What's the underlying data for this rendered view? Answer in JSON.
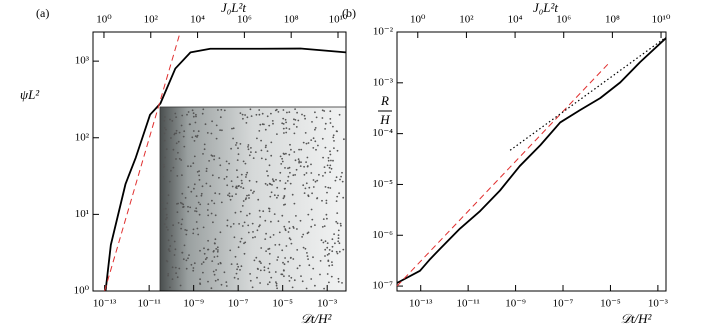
{
  "chart_data": [
    {
      "type": "line",
      "label": "(a)",
      "xscale": "log",
      "yscale": "log",
      "xlabel": "𝒟t/H²",
      "x2label": "J₀L²t",
      "ylabel": "ψL²",
      "xlim": [
        3e-14,
        0.007
      ],
      "xticks": [
        {
          "value": 1e-13,
          "label": "10⁻¹³"
        },
        {
          "value": 1e-11,
          "label": "10⁻¹¹"
        },
        {
          "value": 1e-09,
          "label": "10⁻⁹"
        },
        {
          "value": 1e-07,
          "label": "10⁻⁷"
        },
        {
          "value": 1e-05,
          "label": "10⁻⁵"
        },
        {
          "value": 0.001,
          "label": "10⁻³"
        }
      ],
      "x2lim": [
        0.34,
        22000000000.0
      ],
      "x2ticks": [
        {
          "value": 1,
          "label": "10⁰"
        },
        {
          "value": 100,
          "label": "10²"
        },
        {
          "value": 10000,
          "label": "10⁴"
        },
        {
          "value": 1000000,
          "label": "10⁶"
        },
        {
          "value": 100000000,
          "label": "10⁸"
        },
        {
          "value": 10000000000,
          "label": "10¹⁰"
        }
      ],
      "ylim": [
        1,
        2400
      ],
      "yticks": [
        {
          "value": 1,
          "label": "10⁰"
        },
        {
          "value": 10,
          "label": "10¹"
        },
        {
          "value": 100,
          "label": "10²"
        },
        {
          "value": 1000,
          "label": "10³"
        }
      ],
      "series": [
        {
          "color": "#000000",
          "style": "solid",
          "width": 1.8,
          "x": [
            1.1e-13,
            1.9e-13,
            8.7e-13,
            2.5e-12,
            1.1e-11,
            3.2e-11,
            1.5e-10,
            7.2e-10,
            5.6e-09,
            1e-06,
            6.3e-05,
            0.007
          ],
          "values": [
            1,
            4,
            25,
            55,
            200,
            280,
            800,
            1300,
            1450,
            1450,
            1460,
            1300
          ]
        },
        {
          "color": "#e03030",
          "style": "dashed",
          "width": 1,
          "x": [
            1e-13,
            2.5e-10
          ],
          "values": [
            1,
            2400
          ]
        }
      ]
    },
    {
      "type": "line",
      "label": "(b)",
      "xscale": "log",
      "yscale": "log",
      "xlabel": "𝒟t/H²",
      "x2label": "J₀L²t",
      "ylabel": {
        "numerator": "R",
        "denominator": "H"
      },
      "xlim": [
        1e-14,
        0.0022
      ],
      "xticks": [
        {
          "value": 1e-13,
          "label": "10⁻¹³"
        },
        {
          "value": 1e-11,
          "label": "10⁻¹¹"
        },
        {
          "value": 1e-09,
          "label": "10⁻⁹"
        },
        {
          "value": 1e-07,
          "label": "10⁻⁷"
        },
        {
          "value": 1e-05,
          "label": "10⁻⁵"
        },
        {
          "value": 0.001,
          "label": "10⁻³"
        }
      ],
      "x2lim": [
        0.14,
        16000000000.0
      ],
      "x2ticks": [
        {
          "value": 1,
          "label": "10⁰"
        },
        {
          "value": 100,
          "label": "10²"
        },
        {
          "value": 10000,
          "label": "10⁴"
        },
        {
          "value": 1000000,
          "label": "10⁶"
        },
        {
          "value": 100000000,
          "label": "10⁸"
        },
        {
          "value": 10000000000,
          "label": "10¹⁰"
        }
      ],
      "ylim": [
        8e-08,
        0.01
      ],
      "yticks": [
        {
          "value": 1e-07,
          "label": "10⁻⁷"
        },
        {
          "value": 1e-06,
          "label": "10⁻⁶"
        },
        {
          "value": 1e-05,
          "label": "10⁻⁵"
        },
        {
          "value": 0.0001,
          "label": "10⁻⁴"
        },
        {
          "value": 0.001,
          "label": "10⁻³"
        },
        {
          "value": 0.01,
          "label": "10⁻²"
        }
      ],
      "series": [
        {
          "color": "#000000",
          "style": "solid",
          "width": 1.8,
          "x": [
            1e-14,
            9.3e-14,
            2.5e-13,
            6.5e-13,
            4.5e-12,
            3.2e-11,
            2.2e-10,
            1.5e-09,
            1.1e-08,
            7.6e-08,
            5.2e-07,
            3.7e-06,
            2.6e-05,
            0.00018,
            0.0022
          ],
          "values": [
            1.15e-07,
            2e-07,
            3.4e-07,
            5.4e-07,
            1.35e-06,
            3e-06,
            7.6e-06,
            2.3e-05,
            5.9e-05,
            0.000166,
            0.00029,
            0.0005,
            0.00102,
            0.00257,
            0.0076
          ]
        },
        {
          "color": "#e03030",
          "style": "dashed",
          "width": 1,
          "x": [
            1e-14,
            9.8e-06
          ],
          "values": [
            1e-07,
            0.0026
          ]
        },
        {
          "color": "#000000",
          "style": "dotted",
          "width": 1.2,
          "x": [
            5.9e-10,
            0.0022
          ],
          "values": [
            4.7e-05,
            0.0079
          ]
        }
      ]
    }
  ]
}
